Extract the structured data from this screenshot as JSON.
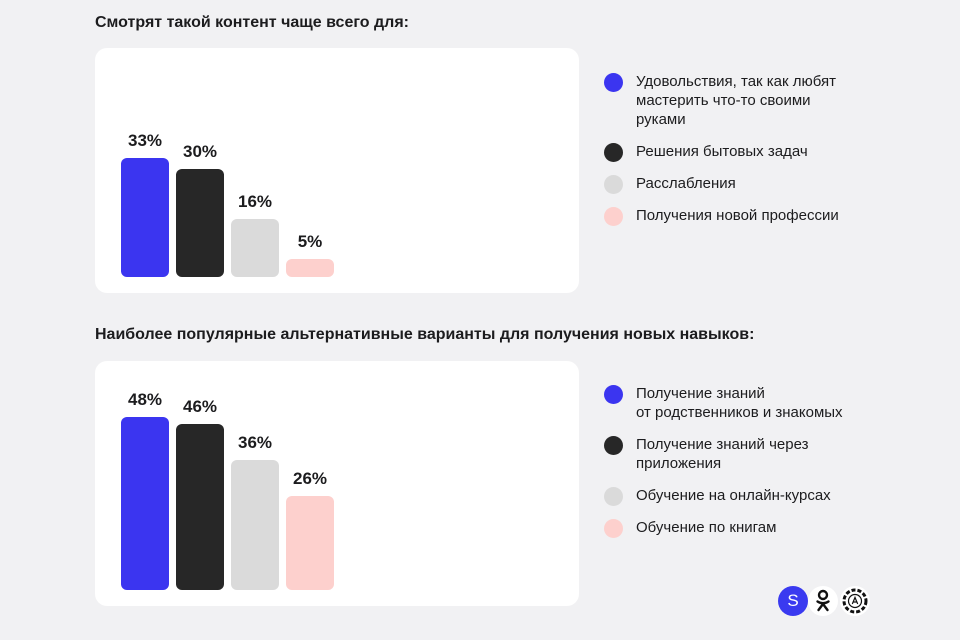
{
  "colors": {
    "blue": "#3b35f0",
    "black": "#272727",
    "gray": "#dadada",
    "pink": "#fdd0cd"
  },
  "chart_data": [
    {
      "type": "bar",
      "title": "Смотрят такой контент чаще всего для:",
      "categories": [
        "Удовольствия, так как любят мастерить что-то своими руками",
        "Решения бытовых задач",
        "Расслабления",
        "Получения новой профессии"
      ],
      "values": [
        33,
        30,
        16,
        5
      ],
      "labels": [
        "33%",
        "30%",
        "16%",
        "5%"
      ],
      "colors": [
        "#3b35f0",
        "#272727",
        "#dadada",
        "#fdd0cd"
      ],
      "legend": {
        "position": "right",
        "items": [
          [
            "Удовольствия, так как любят",
            "мастерить что-то своими",
            "руками"
          ],
          [
            "Решения бытовых задач"
          ],
          [
            "Расслабления"
          ],
          [
            "Получения новой профессии"
          ]
        ]
      }
    },
    {
      "type": "bar",
      "title": "Наиболее популярные альтернативные варианты для получения новых навыков:",
      "categories": [
        "Получение знаний от родственников и знакомых",
        "Получение знаний через приложения",
        "Обучение на онлайн-курсах",
        "Обучение по книгам"
      ],
      "values": [
        48,
        46,
        36,
        26
      ],
      "labels": [
        "48%",
        "46%",
        "36%",
        "26%"
      ],
      "colors": [
        "#3b35f0",
        "#272727",
        "#dadada",
        "#fdd0cd"
      ],
      "legend": {
        "position": "right",
        "items": [
          [
            "Получение знаний",
            "от родственников и знакомых"
          ],
          [
            "Получение знаний через",
            "приложения"
          ],
          [
            "Обучение на онлайн-курсах"
          ],
          [
            "Обучение по книгам"
          ]
        ]
      }
    }
  ],
  "logos": {
    "s_letter": "S",
    "ok_icon": "odnoklassniki-icon",
    "a_icon": "a-badge-icon"
  }
}
